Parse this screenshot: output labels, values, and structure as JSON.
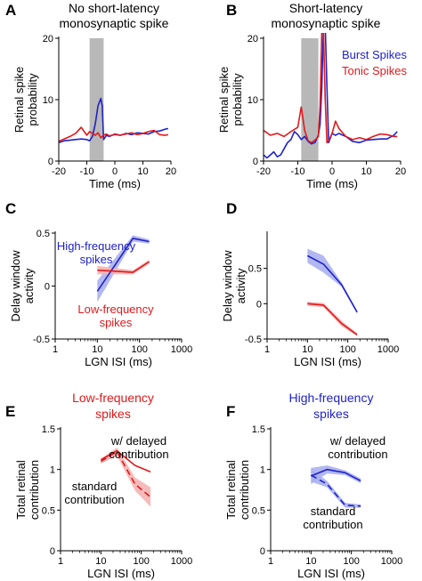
{
  "colors": {
    "blue": "#1f22c8",
    "red": "#e0191c",
    "gray": "#b8b8b8",
    "blue_band": "#aab0ee",
    "red_band": "#f4b3b3"
  },
  "chart_data": [
    {
      "id": "A",
      "type": "line",
      "panel_letter": "A",
      "title": [
        "No short-latency",
        "monosynaptic spike"
      ],
      "xlabel": "Time (ms)",
      "ylabel": [
        "Retinal spike",
        "probability"
      ],
      "xlim": [
        -20,
        20
      ],
      "ylim": [
        0,
        20
      ],
      "xticks": [
        -20,
        -10,
        0,
        10,
        20
      ],
      "yticks": [
        0,
        10,
        20
      ],
      "shaded_region": [
        -9,
        -4
      ],
      "series": [
        {
          "color": "blue",
          "x": [
            -20,
            -18,
            -16,
            -14,
            -12,
            -10,
            -9,
            -8,
            -7,
            -6,
            -5,
            -4.5,
            -4,
            -3,
            -2,
            0,
            2,
            4,
            6,
            8,
            10,
            12,
            14,
            16,
            18,
            19
          ],
          "y": [
            3,
            3.3,
            3.4,
            3.5,
            3.6,
            3.5,
            3.3,
            4,
            6,
            9,
            10.2,
            9,
            3.5,
            4.2,
            4,
            4.4,
            4.2,
            4.5,
            4.3,
            4.6,
            4.5,
            4.4,
            4.8,
            4.9,
            5.2,
            5.3
          ]
        },
        {
          "color": "red",
          "x": [
            -20,
            -18,
            -16,
            -14,
            -12,
            -10,
            -9,
            -8,
            -7,
            -6,
            -5,
            -4,
            -3,
            -2,
            0,
            2,
            4,
            6,
            8,
            10,
            12,
            14,
            16,
            18,
            19
          ],
          "y": [
            3.2,
            3.6,
            4,
            4.5,
            5.5,
            4.2,
            4.8,
            4.5,
            4.2,
            4.6,
            3.8,
            4.2,
            4.4,
            4.1,
            4.3,
            4.2,
            4.4,
            4.6,
            4.3,
            4.5,
            4.8,
            5,
            4.3,
            4.2,
            4.3
          ]
        }
      ]
    },
    {
      "id": "B",
      "type": "line",
      "panel_letter": "B",
      "title": [
        "Short-latency",
        "monosynaptic spike"
      ],
      "xlabel": "Time (ms)",
      "ylabel": [
        "Retinal spike",
        "probability"
      ],
      "xlim": [
        -20,
        20
      ],
      "ylim": [
        0,
        20
      ],
      "xticks": [
        -20,
        -10,
        0,
        10,
        20
      ],
      "yticks": [
        0,
        10,
        20
      ],
      "shaded_region": [
        -9,
        -4
      ],
      "legend": [
        {
          "label": "Burst Spikes",
          "color": "blue"
        },
        {
          "label": "Tonic Spikes",
          "color": "red"
        }
      ],
      "series": [
        {
          "color": "blue",
          "x": [
            -20,
            -19,
            -18,
            -17,
            -16,
            -15,
            -14,
            -13,
            -12,
            -11,
            -10,
            -9,
            -8,
            -7,
            -6,
            -5,
            -4,
            -3.5,
            -3,
            -2.5,
            -2,
            -1.5,
            -1,
            0,
            1,
            2,
            4,
            6,
            8,
            10,
            12,
            14,
            16,
            18,
            19
          ],
          "y": [
            1,
            0.5,
            1,
            1.5,
            0.7,
            1,
            2,
            3,
            3.5,
            4.8,
            4.3,
            3.5,
            4,
            3.2,
            2.8,
            3,
            4.2,
            6,
            12,
            22,
            22,
            12,
            3,
            4.5,
            4.2,
            4.5,
            4,
            3.2,
            3,
            3.4,
            3.5,
            3.6,
            3.6,
            4.2,
            4.8
          ]
        },
        {
          "color": "red",
          "x": [
            -20,
            -18,
            -16,
            -14,
            -12,
            -10,
            -9,
            -8,
            -7,
            -6,
            -5,
            -4,
            -3.5,
            -3,
            -2.5,
            -2,
            -1.5,
            -1,
            0,
            1,
            2,
            4,
            6,
            8,
            10,
            12,
            14,
            16,
            18,
            19
          ],
          "y": [
            5,
            4.2,
            4.5,
            4,
            4.8,
            5.5,
            8.8,
            5,
            3.3,
            3,
            3.4,
            4,
            9,
            21,
            21,
            10,
            3,
            3.3,
            4.5,
            6.5,
            5.3,
            4,
            3.5,
            3.8,
            3.5,
            4,
            4.4,
            4.3,
            4,
            4
          ]
        }
      ]
    },
    {
      "id": "C",
      "type": "line",
      "panel_letter": "C",
      "xlabel": "LGN ISI (ms)",
      "ylabel": [
        "Delay window",
        "activity"
      ],
      "xscale": "log",
      "xlim": [
        1,
        1000
      ],
      "ylim": [
        -0.5,
        0.5
      ],
      "xticks": [
        1,
        10,
        100,
        1000
      ],
      "yticks": [
        -0.5,
        0,
        0.5
      ],
      "annotations": [
        {
          "text": [
            "High-frequency",
            "spikes"
          ],
          "color": "blue"
        },
        {
          "text": [
            "Low-frequency",
            "spikes"
          ],
          "color": "red"
        }
      ],
      "series": [
        {
          "color": "blue",
          "x": [
            10,
            70,
            170
          ],
          "y": [
            -0.05,
            0.45,
            0.42
          ],
          "band": [
            0.1,
            0.03,
            0.02
          ]
        },
        {
          "color": "red",
          "x": [
            10,
            70,
            170
          ],
          "y": [
            0.15,
            0.13,
            0.23
          ],
          "band": [
            0.04,
            0.02,
            0.02
          ]
        }
      ]
    },
    {
      "id": "D",
      "type": "line",
      "panel_letter": "D",
      "xlabel": "LGN ISI (ms)",
      "ylabel": [
        "Delay window",
        "activity"
      ],
      "xscale": "log",
      "xlim": [
        1,
        1000
      ],
      "ylim": [
        -0.5,
        1
      ],
      "xticks": [
        1,
        10,
        100,
        1000
      ],
      "yticks": [
        -0.5,
        0,
        0.5
      ],
      "series": [
        {
          "color": "blue",
          "x": [
            10,
            25,
            70,
            170
          ],
          "y": [
            0.68,
            0.56,
            0.27,
            -0.12
          ],
          "band": [
            0.1,
            0.12,
            0.03,
            0.02
          ]
        },
        {
          "color": "red",
          "x": [
            10,
            25,
            70,
            170
          ],
          "y": [
            0.0,
            -0.02,
            -0.28,
            -0.44
          ],
          "band": [
            0.03,
            0.03,
            0.04,
            0.02
          ]
        }
      ]
    },
    {
      "id": "E",
      "type": "line",
      "panel_letter": "E",
      "title": [
        "Low-frequency",
        "spikes"
      ],
      "title_color": "red",
      "xlabel": "LGN ISI (ms)",
      "ylabel": [
        "Total retinal",
        "contribution"
      ],
      "xscale": "log",
      "xlim": [
        1,
        1000
      ],
      "ylim": [
        0,
        1.5
      ],
      "xticks": [
        1,
        10,
        100,
        1000
      ],
      "yticks": [
        0,
        0.5,
        1,
        1.5
      ],
      "annotations": [
        {
          "text": [
            "w/ delayed",
            "contribution"
          ],
          "color": "black"
        },
        {
          "text": [
            "standard",
            "contribution"
          ],
          "color": "black"
        }
      ],
      "series": [
        {
          "color": "red",
          "dashed": false,
          "x": [
            10,
            25,
            70,
            170
          ],
          "y": [
            1.12,
            1.23,
            1.05,
            0.97
          ]
        },
        {
          "color": "red",
          "dashed": true,
          "x": [
            10,
            25,
            70,
            170
          ],
          "y": [
            1.1,
            1.22,
            0.82,
            0.66
          ],
          "band": [
            0.03,
            0.05,
            0.08,
            0.12
          ]
        }
      ]
    },
    {
      "id": "F",
      "type": "line",
      "panel_letter": "F",
      "title": [
        "High-frequency",
        "spikes"
      ],
      "title_color": "blue",
      "xlabel": "LGN ISI (ms)",
      "ylabel": [
        "Total retinal",
        "contribution"
      ],
      "xscale": "log",
      "xlim": [
        1,
        1000
      ],
      "ylim": [
        0,
        1.5
      ],
      "xticks": [
        1,
        10,
        100,
        1000
      ],
      "yticks": [
        0,
        0.5,
        1,
        1.5
      ],
      "annotations": [
        {
          "text": [
            "w/ delayed",
            "contribution"
          ],
          "color": "black"
        },
        {
          "text": [
            "standard",
            "contribution"
          ],
          "color": "black"
        }
      ],
      "series": [
        {
          "color": "blue",
          "dashed": false,
          "x": [
            10,
            25,
            70,
            170
          ],
          "y": [
            0.92,
            1.0,
            0.96,
            0.86
          ],
          "band": [
            0.1,
            0.05,
            0.03,
            0.03
          ]
        },
        {
          "color": "blue",
          "dashed": true,
          "x": [
            10,
            25,
            70,
            170
          ],
          "y": [
            0.93,
            0.82,
            0.56,
            0.55
          ],
          "band": [
            0.08,
            0.04,
            0.03,
            0.02
          ]
        }
      ]
    }
  ]
}
